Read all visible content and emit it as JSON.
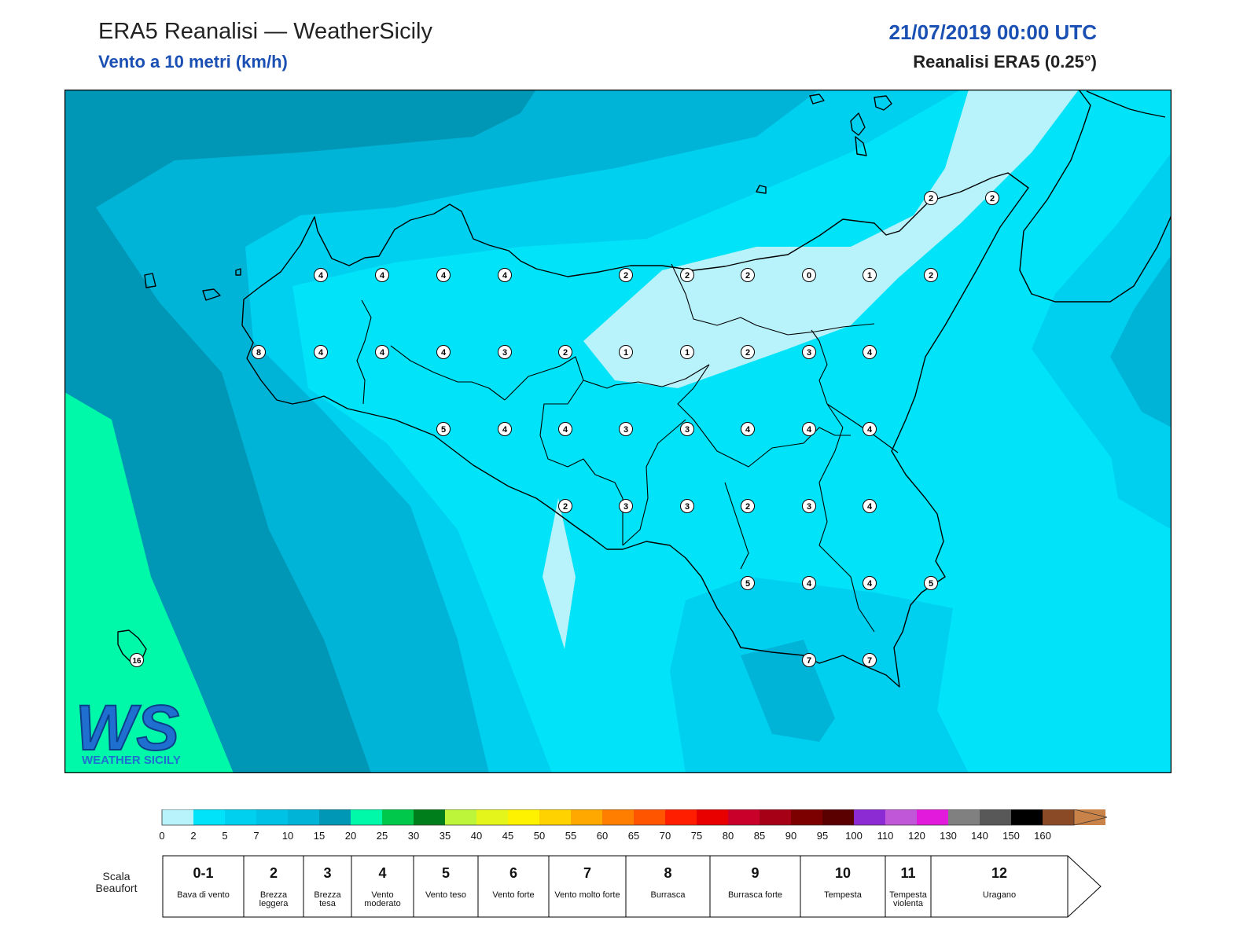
{
  "header": {
    "title": "ERA5 Reanalisi — WeatherSicily",
    "subtitle": "Vento a 10 metri (km/h)",
    "datetime": "21/07/2019 00:00 UTC",
    "source": "Reanalisi ERA5 (0.25°)"
  },
  "logo": {
    "text": "WEATHER SICILY",
    "letters": "WS"
  },
  "colors": {
    "c0_2": "#b8f2fb",
    "c2_5": "#00e3f8",
    "c5_7": "#00d0f0",
    "c7_10": "#00b4d8",
    "c10_15": "#0097b6",
    "c15_20": "#00f9a8",
    "coast": "#000000"
  },
  "wind_values": [
    {
      "v": "4"
    },
    {
      "v": "4"
    },
    {
      "v": "4"
    },
    {
      "v": "4"
    },
    {
      "v": "2"
    },
    {
      "v": "2"
    },
    {
      "v": "2"
    },
    {
      "v": "0"
    },
    {
      "v": "1"
    },
    {
      "v": "2"
    },
    {
      "v": "8"
    },
    {
      "v": "4"
    },
    {
      "v": "4"
    },
    {
      "v": "4"
    },
    {
      "v": "3"
    },
    {
      "v": "2"
    },
    {
      "v": "1"
    },
    {
      "v": "1"
    },
    {
      "v": "2"
    },
    {
      "v": "3"
    },
    {
      "v": "4"
    },
    {
      "v": "5"
    },
    {
      "v": "4"
    },
    {
      "v": "4"
    },
    {
      "v": "3"
    },
    {
      "v": "3"
    },
    {
      "v": "4"
    },
    {
      "v": "4"
    },
    {
      "v": "4"
    },
    {
      "v": "2"
    },
    {
      "v": "3"
    },
    {
      "v": "3"
    },
    {
      "v": "2"
    },
    {
      "v": "3"
    },
    {
      "v": "4"
    },
    {
      "v": "5"
    },
    {
      "v": "4"
    },
    {
      "v": "4"
    },
    {
      "v": "5"
    },
    {
      "v": "7"
    },
    {
      "v": "7"
    },
    {
      "v": "2"
    },
    {
      "v": "2"
    },
    {
      "v": "16"
    }
  ],
  "colorbar": {
    "ticks": [
      "0",
      "2",
      "5",
      "7",
      "10",
      "15",
      "20",
      "25",
      "30",
      "35",
      "40",
      "45",
      "50",
      "55",
      "60",
      "65",
      "70",
      "75",
      "80",
      "85",
      "90",
      "95",
      "100",
      "110",
      "120",
      "130",
      "140",
      "150",
      "160"
    ],
    "colors": [
      "#b8f2fb",
      "#00e3f8",
      "#00d0f0",
      "#00c2e4",
      "#00b4d8",
      "#0097b6",
      "#00f9a8",
      "#00c84a",
      "#007e1c",
      "#bdf53a",
      "#e4f51c",
      "#fff200",
      "#ffd200",
      "#ffa800",
      "#ff7e00",
      "#ff5400",
      "#ff1f00",
      "#e80000",
      "#c8002a",
      "#a50015",
      "#7d0000",
      "#5a0000",
      "#8c2ad4",
      "#c057d8",
      "#e21adc",
      "#808080",
      "#585858",
      "#000000",
      "#8b4a26",
      "#c98248"
    ]
  },
  "beaufort": {
    "label": "Scala Beaufort",
    "classes": [
      {
        "num": "0-1",
        "name": "Bava di vento"
      },
      {
        "num": "2",
        "name": "Brezza leggera"
      },
      {
        "num": "3",
        "name": "Brezza tesa"
      },
      {
        "num": "4",
        "name": "Vento moderato"
      },
      {
        "num": "5",
        "name": "Vento teso"
      },
      {
        "num": "6",
        "name": "Vento forte"
      },
      {
        "num": "7",
        "name": "Vento molto forte"
      },
      {
        "num": "8",
        "name": "Burrasca"
      },
      {
        "num": "9",
        "name": "Burrasca forte"
      },
      {
        "num": "10",
        "name": "Tempesta"
      },
      {
        "num": "11",
        "name": "Tempesta violenta"
      },
      {
        "num": "12",
        "name": "Uragano"
      }
    ]
  }
}
